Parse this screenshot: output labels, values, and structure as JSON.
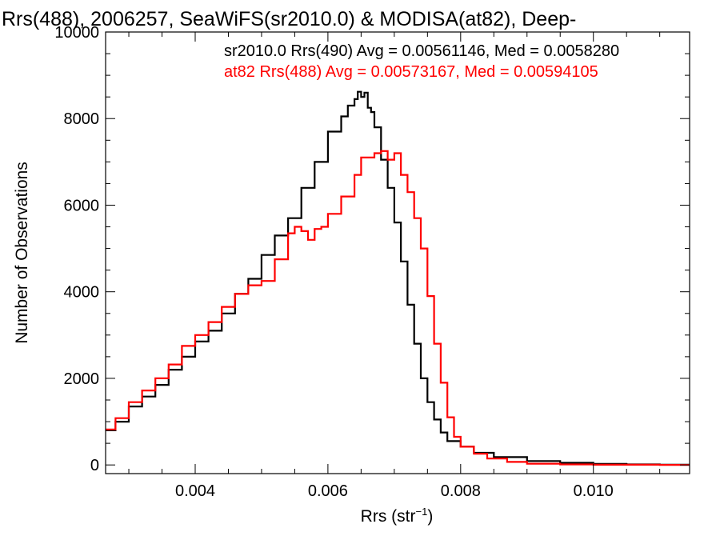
{
  "chart_data": {
    "type": "line",
    "step": true,
    "title": "Rrs(488), 2006257, SeaWiFS(sr2010.0) & MODISA(at82), Deep-",
    "xlabel": "Rrs (str",
    "xlabel_sup": "−1",
    "xlabel_close": ")",
    "ylabel": "Number of Observations",
    "xlim": [
      0.00265,
      0.01145
    ],
    "ylim": [
      -200,
      10000
    ],
    "grid": false,
    "x_ticks": [
      {
        "value": 0.004,
        "label": "0.004"
      },
      {
        "value": 0.006,
        "label": "0.006"
      },
      {
        "value": 0.008,
        "label": "0.008"
      },
      {
        "value": 0.01,
        "label": "0.010"
      }
    ],
    "y_ticks": [
      {
        "value": 0,
        "label": "0"
      },
      {
        "value": 2000,
        "label": "2000"
      },
      {
        "value": 4000,
        "label": "4000"
      },
      {
        "value": 6000,
        "label": "6000"
      },
      {
        "value": 8000,
        "label": "8000"
      },
      {
        "value": 10000,
        "label": "10000"
      }
    ],
    "series": [
      {
        "name": "sr2010.0 Rrs(490)",
        "legend_text": "sr2010.0 Rrs(490) Avg = 0.00561146, Med = 0.0058280",
        "color": "#000000",
        "points": [
          [
            0.00265,
            800
          ],
          [
            0.0028,
            1000
          ],
          [
            0.003,
            1350
          ],
          [
            0.0032,
            1580
          ],
          [
            0.0034,
            1850
          ],
          [
            0.0036,
            2200
          ],
          [
            0.0038,
            2500
          ],
          [
            0.004,
            2850
          ],
          [
            0.0042,
            3100
          ],
          [
            0.0044,
            3500
          ],
          [
            0.0046,
            3950
          ],
          [
            0.0048,
            4300
          ],
          [
            0.005,
            4850
          ],
          [
            0.0052,
            5300
          ],
          [
            0.0054,
            5700
          ],
          [
            0.0056,
            6400
          ],
          [
            0.0058,
            7000
          ],
          [
            0.006,
            7700
          ],
          [
            0.0062,
            8050
          ],
          [
            0.0063,
            8300
          ],
          [
            0.0064,
            8450
          ],
          [
            0.00645,
            8620
          ],
          [
            0.0065,
            8500
          ],
          [
            0.00655,
            8600
          ],
          [
            0.0066,
            8250
          ],
          [
            0.00665,
            8150
          ],
          [
            0.0067,
            7800
          ],
          [
            0.0068,
            7050
          ],
          [
            0.0069,
            6400
          ],
          [
            0.007,
            5600
          ],
          [
            0.0071,
            4700
          ],
          [
            0.0072,
            3700
          ],
          [
            0.0073,
            2800
          ],
          [
            0.0074,
            2000
          ],
          [
            0.0075,
            1450
          ],
          [
            0.0076,
            1050
          ],
          [
            0.0077,
            750
          ],
          [
            0.0078,
            550
          ],
          [
            0.008,
            420
          ],
          [
            0.0082,
            280
          ],
          [
            0.0085,
            180
          ],
          [
            0.009,
            90
          ],
          [
            0.0095,
            50
          ],
          [
            0.01,
            25
          ],
          [
            0.0105,
            12
          ],
          [
            0.011,
            5
          ],
          [
            0.01145,
            2
          ]
        ]
      },
      {
        "name": "at82 Rrs(488)",
        "legend_text": "at82 Rrs(488) Avg = 0.00573167, Med = 0.00594105",
        "color": "#ff0000",
        "points": [
          [
            0.00265,
            820
          ],
          [
            0.0028,
            1080
          ],
          [
            0.003,
            1450
          ],
          [
            0.0032,
            1720
          ],
          [
            0.0034,
            2000
          ],
          [
            0.0036,
            2320
          ],
          [
            0.0038,
            2750
          ],
          [
            0.004,
            3000
          ],
          [
            0.0042,
            3300
          ],
          [
            0.0044,
            3650
          ],
          [
            0.0046,
            3950
          ],
          [
            0.0048,
            4150
          ],
          [
            0.005,
            4250
          ],
          [
            0.0052,
            4750
          ],
          [
            0.0054,
            5350
          ],
          [
            0.0055,
            5500
          ],
          [
            0.0056,
            5400
          ],
          [
            0.0057,
            5200
          ],
          [
            0.0058,
            5450
          ],
          [
            0.0059,
            5500
          ],
          [
            0.006,
            5800
          ],
          [
            0.0062,
            6200
          ],
          [
            0.0064,
            6700
          ],
          [
            0.0065,
            7100
          ],
          [
            0.0066,
            7100
          ],
          [
            0.0067,
            7200
          ],
          [
            0.0068,
            7250
          ],
          [
            0.0069,
            7050
          ],
          [
            0.007,
            7200
          ],
          [
            0.0071,
            6700
          ],
          [
            0.0072,
            6300
          ],
          [
            0.0073,
            5700
          ],
          [
            0.0074,
            5000
          ],
          [
            0.0075,
            3900
          ],
          [
            0.0076,
            2800
          ],
          [
            0.0077,
            1900
          ],
          [
            0.0078,
            1100
          ],
          [
            0.0079,
            650
          ],
          [
            0.008,
            420
          ],
          [
            0.0082,
            260
          ],
          [
            0.0084,
            150
          ],
          [
            0.0087,
            70
          ],
          [
            0.009,
            30
          ],
          [
            0.0095,
            12
          ],
          [
            0.01,
            5
          ],
          [
            0.011,
            2
          ],
          [
            0.01145,
            1
          ]
        ]
      }
    ]
  }
}
